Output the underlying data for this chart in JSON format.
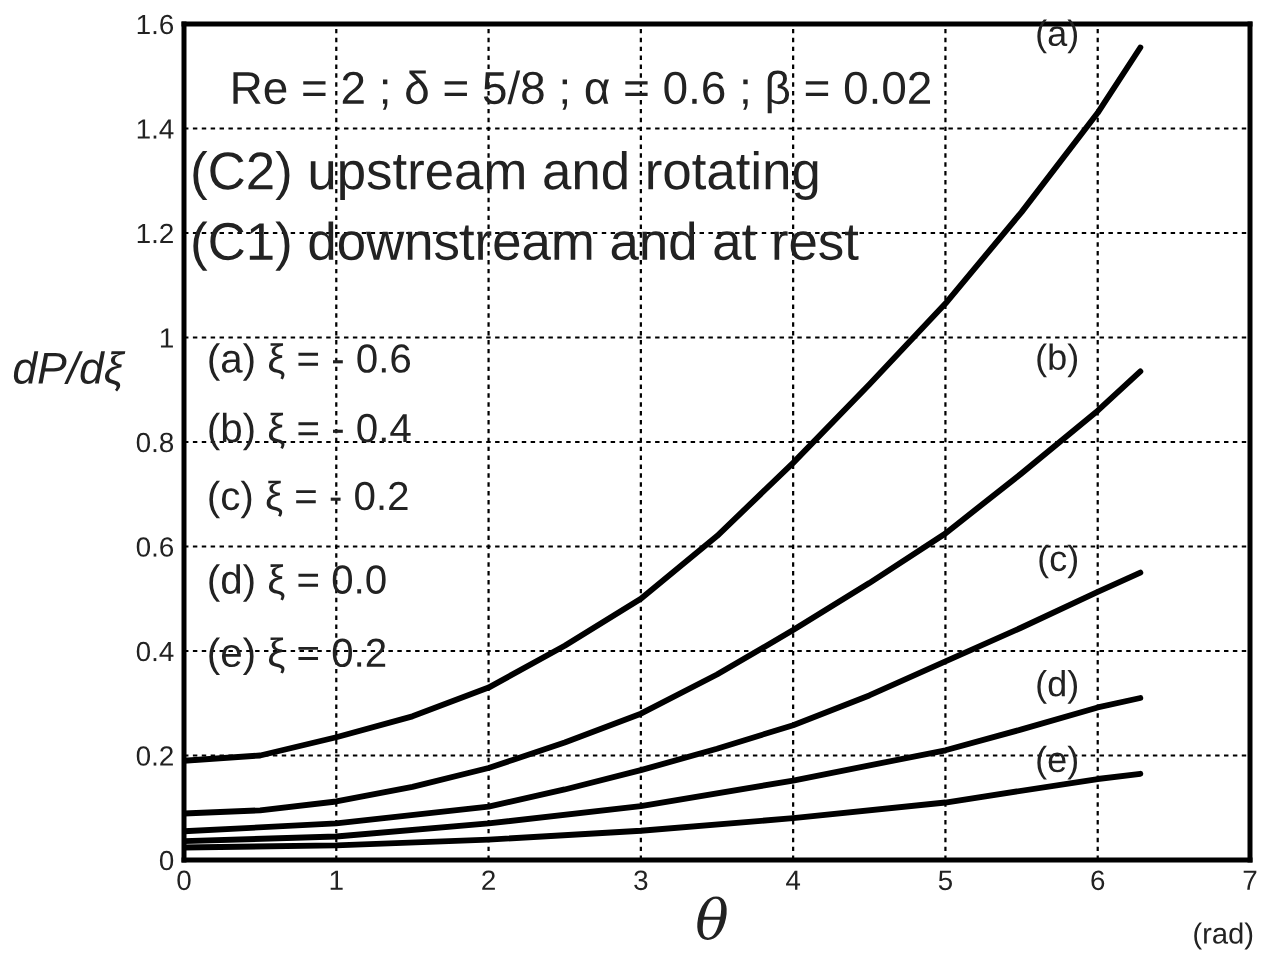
{
  "chart_data": {
    "type": "line",
    "xlabel": "θ",
    "ylabel": "dP/dξ",
    "xlim": [
      0,
      7
    ],
    "xticks": [
      0,
      1,
      2,
      3,
      4,
      5,
      6,
      7
    ],
    "ylim": [
      0,
      1.6
    ],
    "yticks": [
      0,
      0.2,
      0.4,
      0.6,
      0.8,
      1,
      1.2,
      1.4,
      1.6
    ],
    "grid": true,
    "line_style": "solid",
    "marker": "none",
    "series": [
      {
        "name": "(a)",
        "color": "#000000",
        "x": [
          0,
          0.5,
          1,
          1.5,
          2,
          2.5,
          3,
          3.5,
          4,
          4.5,
          5,
          5.5,
          6,
          6.28
        ],
        "values": [
          0.19,
          0.2,
          0.235,
          0.275,
          0.33,
          0.41,
          0.5,
          0.62,
          0.76,
          0.91,
          1.065,
          1.24,
          1.43,
          1.555
        ]
      },
      {
        "name": "(b)",
        "color": "#000000",
        "x": [
          0,
          0.5,
          1,
          1.5,
          2,
          2.5,
          3,
          3.5,
          4,
          4.5,
          5,
          5.5,
          6,
          6.28
        ],
        "values": [
          0.089,
          0.095,
          0.112,
          0.14,
          0.176,
          0.225,
          0.28,
          0.355,
          0.44,
          0.53,
          0.625,
          0.74,
          0.86,
          0.935
        ]
      },
      {
        "name": "(c)",
        "color": "#000000",
        "x": [
          0,
          1,
          2,
          2.5,
          3,
          3.5,
          4,
          4.5,
          5,
          5.5,
          6,
          6.28
        ],
        "values": [
          0.055,
          0.07,
          0.102,
          0.135,
          0.172,
          0.213,
          0.258,
          0.315,
          0.38,
          0.445,
          0.513,
          0.55
        ]
      },
      {
        "name": "(d)",
        "color": "#000000",
        "x": [
          0,
          1,
          2,
          3,
          4,
          5,
          5.5,
          6,
          6.28
        ],
        "values": [
          0.036,
          0.045,
          0.07,
          0.103,
          0.152,
          0.21,
          0.25,
          0.292,
          0.31
        ]
      },
      {
        "name": "(e)",
        "color": "#000000",
        "x": [
          0,
          1,
          2,
          3,
          4,
          5,
          6,
          6.28
        ],
        "values": [
          0.024,
          0.028,
          0.039,
          0.056,
          0.08,
          0.11,
          0.155,
          0.165
        ]
      }
    ],
    "annotations": [
      "Re = 2 ; δ = 5/8 ; α = 0.6 ; β = 0.02",
      "(C2) upstream and rotating",
      "(C1) downstream and at rest",
      "(a) ξ = - 0.6",
      "(b) ξ = - 0.4",
      "(c) ξ = - 0.2",
      "(d) ξ = 0.0",
      "(e) ξ = 0.2",
      "(rad)"
    ]
  }
}
